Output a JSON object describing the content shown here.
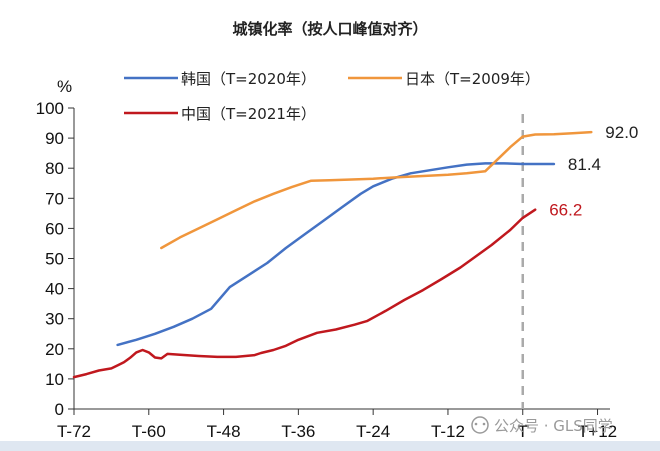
{
  "chart_data": {
    "type": "line",
    "title": "城镇化率（按人口峰值对齐）",
    "ylabel": "%",
    "ylim": [
      0,
      100
    ],
    "yticks": [
      0,
      10,
      20,
      30,
      40,
      50,
      60,
      70,
      80,
      90,
      100
    ],
    "xlim": [
      -72,
      14
    ],
    "xticks": [
      {
        "value": -72,
        "label": "T-72"
      },
      {
        "value": -60,
        "label": "T-60"
      },
      {
        "value": -48,
        "label": "T-48"
      },
      {
        "value": -36,
        "label": "T-36"
      },
      {
        "value": -24,
        "label": "T-24"
      },
      {
        "value": -12,
        "label": "T-12"
      },
      {
        "value": 0,
        "label": "T"
      },
      {
        "value": 12,
        "label": "T+12"
      }
    ],
    "reference_line_x": 0,
    "legend": "top",
    "grid": false,
    "series": [
      {
        "name": "韩国（T=2020年）",
        "color": "#4472c4",
        "end_label": "81.4",
        "end_label_color": "#222222",
        "points": [
          [
            -65,
            21.3
          ],
          [
            -62,
            23.0
          ],
          [
            -59,
            25.0
          ],
          [
            -56,
            27.3
          ],
          [
            -53,
            30.0
          ],
          [
            -50,
            33.3
          ],
          [
            -47,
            40.5
          ],
          [
            -44,
            44.5
          ],
          [
            -41,
            48.5
          ],
          [
            -38,
            53.5
          ],
          [
            -35,
            58.0
          ],
          [
            -32,
            62.5
          ],
          [
            -29,
            67.0
          ],
          [
            -26,
            71.5
          ],
          [
            -24,
            74.0
          ],
          [
            -21,
            76.5
          ],
          [
            -18,
            78.3
          ],
          [
            -15,
            79.3
          ],
          [
            -12,
            80.3
          ],
          [
            -9,
            81.2
          ],
          [
            -6,
            81.6
          ],
          [
            -3,
            81.6
          ],
          [
            0,
            81.4
          ],
          [
            3,
            81.4
          ],
          [
            5,
            81.4
          ]
        ]
      },
      {
        "name": "日本（T=2009年）",
        "color": "#f0963c",
        "end_label": "92.0",
        "end_label_color": "#222222",
        "points": [
          [
            -58,
            53.5
          ],
          [
            -55,
            57.0
          ],
          [
            -52,
            60.0
          ],
          [
            -49,
            63.0
          ],
          [
            -46,
            66.0
          ],
          [
            -43,
            69.0
          ],
          [
            -40,
            71.5
          ],
          [
            -37,
            73.8
          ],
          [
            -34,
            75.8
          ],
          [
            -31,
            76.0
          ],
          [
            -28,
            76.2
          ],
          [
            -24,
            76.5
          ],
          [
            -20,
            77.0
          ],
          [
            -16,
            77.4
          ],
          [
            -12,
            77.8
          ],
          [
            -9,
            78.3
          ],
          [
            -6,
            79.0
          ],
          [
            -4,
            83.0
          ],
          [
            -2,
            87.0
          ],
          [
            0,
            90.5
          ],
          [
            2,
            91.2
          ],
          [
            5,
            91.3
          ],
          [
            8,
            91.6
          ],
          [
            11,
            92.0
          ]
        ]
      },
      {
        "name": "中国（T=2021年）",
        "color": "#c0181e",
        "end_label": "66.2",
        "end_label_color": "#c0181e",
        "points": [
          [
            -72,
            10.6
          ],
          [
            -70,
            11.6
          ],
          [
            -68,
            12.8
          ],
          [
            -66,
            13.5
          ],
          [
            -65,
            14.5
          ],
          [
            -64,
            15.5
          ],
          [
            -63,
            17.0
          ],
          [
            -62,
            18.8
          ],
          [
            -61,
            19.6
          ],
          [
            -60,
            18.8
          ],
          [
            -59,
            17.1
          ],
          [
            -58,
            16.8
          ],
          [
            -57,
            18.3
          ],
          [
            -55,
            18.0
          ],
          [
            -52,
            17.6
          ],
          [
            -49,
            17.3
          ],
          [
            -46,
            17.3
          ],
          [
            -43,
            17.9
          ],
          [
            -42,
            18.6
          ],
          [
            -40,
            19.6
          ],
          [
            -38,
            21.0
          ],
          [
            -36,
            23.0
          ],
          [
            -33,
            25.3
          ],
          [
            -30,
            26.4
          ],
          [
            -27,
            28.0
          ],
          [
            -25,
            29.2
          ],
          [
            -22,
            32.6
          ],
          [
            -19,
            36.2
          ],
          [
            -16,
            39.5
          ],
          [
            -13,
            43.2
          ],
          [
            -10,
            47.0
          ],
          [
            -8,
            50.0
          ],
          [
            -5,
            54.5
          ],
          [
            -2,
            59.5
          ],
          [
            0,
            63.5
          ],
          [
            2,
            66.2
          ]
        ]
      }
    ]
  },
  "watermark": "公众号 · GLS同学"
}
